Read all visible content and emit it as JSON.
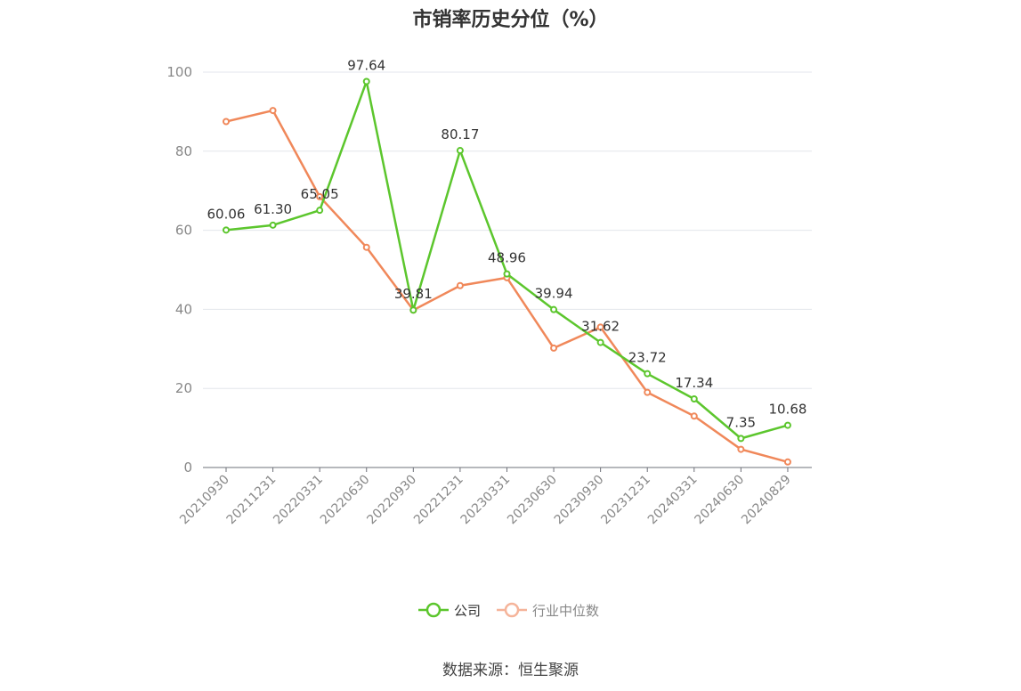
{
  "chart_data": {
    "type": "line",
    "title": "市销率历史分位（%）",
    "xlabel": "",
    "ylabel": "",
    "ylim": [
      0,
      100
    ],
    "yticks": [
      0,
      20,
      40,
      60,
      80,
      100
    ],
    "categories": [
      "20210930",
      "20211231",
      "20220331",
      "20220630",
      "20220930",
      "20221231",
      "20230331",
      "20230630",
      "20230930",
      "20231231",
      "20240331",
      "20240630",
      "20240829"
    ],
    "grid": true,
    "legend_position": "bottom",
    "series": [
      {
        "name": "公司",
        "color": "#5cc62d",
        "values": [
          60.06,
          61.3,
          65.05,
          97.64,
          39.81,
          80.17,
          48.96,
          39.94,
          31.62,
          23.72,
          17.34,
          7.35,
          10.68
        ],
        "labels": [
          "60.06",
          "61.30",
          "65.05",
          "97.64",
          "39.81",
          "80.17",
          "48.96",
          "39.94",
          "31.62",
          "23.72",
          "17.34",
          "7.35",
          "10.68"
        ]
      },
      {
        "name": "行业中位数",
        "color": "#f0885a",
        "values": [
          87.5,
          90.3,
          68.5,
          55.7,
          39.8,
          46.0,
          48.0,
          30.2,
          35.5,
          19.0,
          13.0,
          4.6,
          1.4
        ]
      }
    ]
  },
  "source": "数据来源：恒生聚源"
}
